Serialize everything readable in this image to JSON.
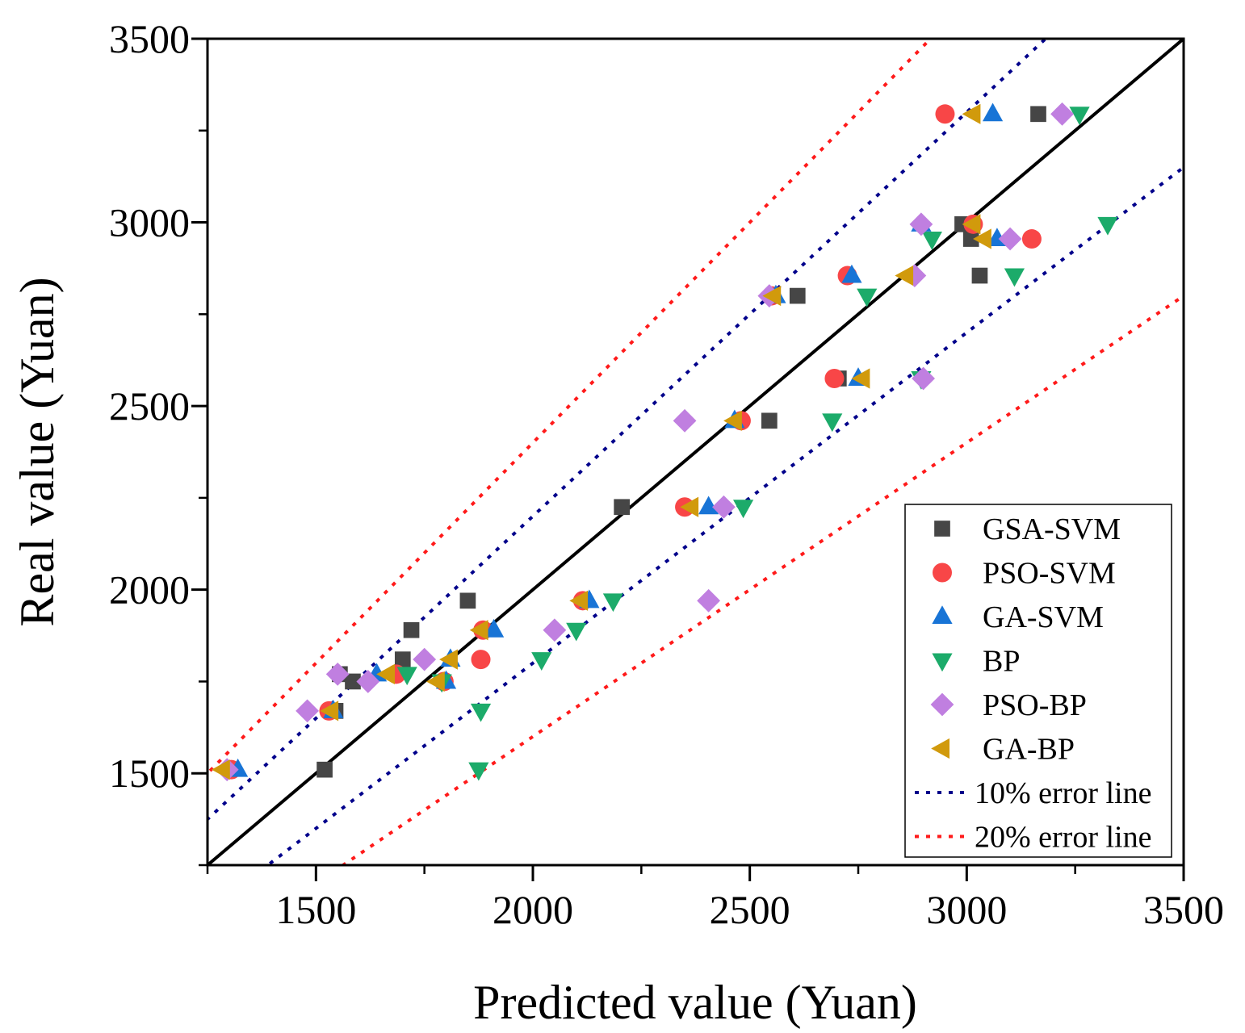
{
  "chart_data": {
    "type": "scatter",
    "title": "",
    "xlabel": "Predicted value (Yuan)",
    "ylabel": "Real value (Yuan)",
    "xlim": [
      1250,
      3500
    ],
    "ylim": [
      1250,
      3500
    ],
    "xticks": [
      1500,
      2000,
      2500,
      3000,
      3500
    ],
    "yticks": [
      1500,
      2000,
      2500,
      3000,
      3500
    ],
    "xtick_labels": [
      "1500",
      "2000",
      "2500",
      "3000",
      "3500"
    ],
    "ytick_labels": [
      "1500",
      "2000",
      "2500",
      "3000",
      "3500"
    ],
    "grid": false,
    "legend_position": "bottom-right",
    "real_values": [
      1510,
      1670,
      1750,
      1770,
      1810,
      1890,
      1970,
      2225,
      2460,
      2575,
      2800,
      2855,
      2955,
      2995,
      3295
    ],
    "series": [
      {
        "name": "GSA-SVM",
        "marker": "square",
        "color": "#464646",
        "x": [
          1520,
          1545,
          1585,
          1555,
          1700,
          1720,
          1850,
          2205,
          2545,
          2705,
          2610,
          3030,
          3010,
          2990,
          3165
        ],
        "y": [
          1510,
          1670,
          1750,
          1770,
          1810,
          1890,
          1970,
          2225,
          2460,
          2575,
          2800,
          2855,
          2955,
          2995,
          3295
        ]
      },
      {
        "name": "PSO-SVM",
        "marker": "circle",
        "color": "#f84647",
        "x": [
          1305,
          1530,
          1795,
          1685,
          1880,
          1885,
          2115,
          2350,
          2480,
          2695,
          2550,
          2725,
          3150,
          3015,
          2950
        ],
        "y": [
          1510,
          1670,
          1750,
          1770,
          1810,
          1890,
          1970,
          2225,
          2460,
          2575,
          2800,
          2855,
          2955,
          2995,
          3295
        ]
      },
      {
        "name": "GA-SVM",
        "marker": "triangle-up",
        "color": "#1874d6",
        "x": [
          1320,
          1540,
          1800,
          1640,
          1810,
          1910,
          2130,
          2405,
          2465,
          2750,
          2560,
          2735,
          3070,
          2895,
          3060
        ],
        "y": [
          1510,
          1670,
          1750,
          1770,
          1810,
          1890,
          1970,
          2225,
          2460,
          2575,
          2800,
          2855,
          2955,
          2995,
          3295
        ]
      },
      {
        "name": "BP",
        "marker": "triangle-down",
        "color": "#1cab6a",
        "x": [
          1875,
          1880,
          1790,
          1710,
          2020,
          2100,
          2185,
          2485,
          2690,
          2895,
          2770,
          3110,
          2920,
          3325,
          3260
        ],
        "y": [
          1510,
          1670,
          1750,
          1770,
          1810,
          1890,
          1970,
          2225,
          2460,
          2575,
          2800,
          2855,
          2955,
          2995,
          3295
        ]
      },
      {
        "name": "PSO-BP",
        "marker": "diamond",
        "color": "#c07fe0",
        "x": [
          1295,
          1480,
          1620,
          1550,
          1750,
          2050,
          2405,
          2440,
          2350,
          2900,
          2545,
          2880,
          3100,
          2895,
          3220
        ],
        "y": [
          1510,
          1670,
          1750,
          1770,
          1810,
          1890,
          1970,
          2225,
          2460,
          2575,
          2800,
          2855,
          2955,
          2995,
          3295
        ]
      },
      {
        "name": "GA-BP",
        "marker": "triangle-left",
        "color": "#d19a0c",
        "x": [
          1285,
          1535,
          1780,
          1665,
          1810,
          1880,
          2110,
          2365,
          2465,
          2760,
          2555,
          2860,
          3040,
          3015,
          3015
        ],
        "y": [
          1510,
          1670,
          1750,
          1770,
          1810,
          1890,
          1970,
          2225,
          2460,
          2575,
          2800,
          2855,
          2955,
          2995,
          3295
        ]
      }
    ],
    "reference_lines": [
      {
        "name": "y = x",
        "slope": 1,
        "style": "solid",
        "color": "#000000",
        "in_legend": false
      },
      {
        "name": "10% error line",
        "slopes": [
          1.1,
          0.9
        ],
        "style": "dotted",
        "color": "#00008b",
        "in_legend": true
      },
      {
        "name": "20% error line",
        "slopes": [
          1.2,
          0.8
        ],
        "style": "dotted",
        "color": "#ff1a1a",
        "in_legend": true
      }
    ]
  }
}
